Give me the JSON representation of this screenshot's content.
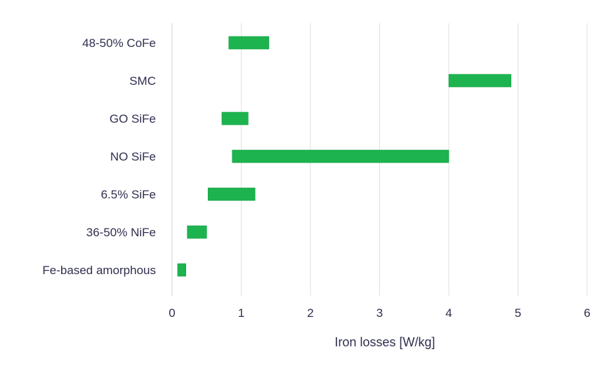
{
  "chart_data": {
    "type": "bar",
    "orientation": "horizontal-range",
    "title": "",
    "xlabel": "Iron losses [W/kg]",
    "ylabel": "",
    "xlim": [
      0,
      6
    ],
    "xticks": [
      "0",
      "1",
      "2",
      "3",
      "4",
      "5",
      "6"
    ],
    "grid": true,
    "bar_color": "#1db34f",
    "categories": [
      "48-50% CoFe",
      "SMC",
      "GO SiFe",
      "NO SiFe",
      "6.5% SiFe",
      "36-50% NiFe",
      "Fe-based amorphous"
    ],
    "ranges": [
      [
        0.82,
        1.4
      ],
      [
        4.0,
        4.9
      ],
      [
        0.72,
        1.1
      ],
      [
        0.87,
        4.0
      ],
      [
        0.52,
        1.2
      ],
      [
        0.22,
        0.5
      ],
      [
        0.08,
        0.2
      ]
    ]
  }
}
